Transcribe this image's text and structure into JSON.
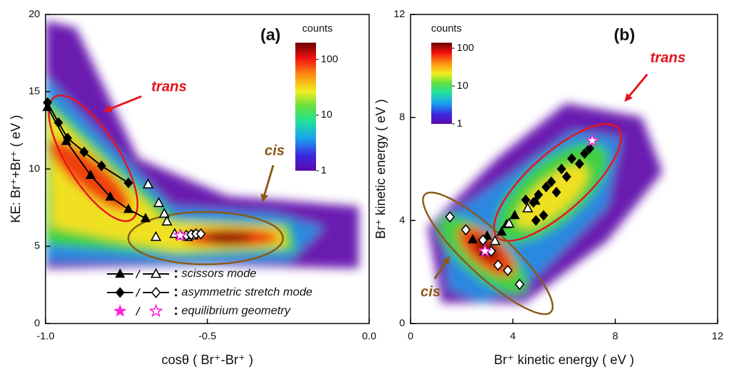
{
  "chart_data": [
    {
      "type": "scatter",
      "panel_label": "(a)",
      "xlabel": "cosθ ( Br⁺-Br⁺ )",
      "ylabel": "KE: Br⁺+Br⁺ ( eV )",
      "xlim": [
        -1,
        0
      ],
      "xticks": [
        {
          "value": -1,
          "label": "-1.0"
        },
        {
          "value": -0.5,
          "label": "-0.5"
        },
        {
          "value": 0,
          "label": "0.0"
        }
      ],
      "ylim": [
        0,
        20
      ],
      "yticks": [
        0,
        5,
        10,
        15,
        20
      ],
      "colorbar": {
        "title": "counts",
        "log": true,
        "lim": [
          1,
          200
        ],
        "ticks": [
          1,
          10,
          100
        ]
      },
      "annotations": [
        {
          "text": "trans",
          "color": "#e8141c"
        },
        {
          "text": "cis",
          "color": "#8a5a14"
        }
      ],
      "series": [
        {
          "name": "scissors mode",
          "marker": "triangle",
          "color": "#000000",
          "line": true,
          "x": [
            -0.994,
            -0.936,
            -0.861,
            -0.8,
            -0.744,
            -0.691
          ],
          "values": [
            14.0,
            11.8,
            9.6,
            8.2,
            7.4,
            6.8
          ]
        },
        {
          "name": "scissors mode",
          "marker": "triangle-open",
          "color": "#000000",
          "x": [
            -0.683,
            -0.65,
            -0.633,
            -0.625,
            -0.659,
            -0.601,
            -0.582,
            -0.561,
            -0.544
          ],
          "values": [
            9.0,
            7.8,
            7.1,
            6.6,
            5.6,
            5.8,
            5.7,
            5.6,
            5.7
          ]
        },
        {
          "name": "asymmetric stretch mode",
          "marker": "diamond",
          "color": "#000000",
          "line": true,
          "x": [
            -0.994,
            -0.96,
            -0.932,
            -0.881,
            -0.827,
            -0.744
          ],
          "values": [
            14.3,
            13.0,
            12.0,
            11.1,
            10.2,
            9.1
          ]
        },
        {
          "name": "asymmetric stretch mode",
          "marker": "diamond-open",
          "color": "#000000",
          "x": [
            -0.565,
            -0.55,
            -0.535,
            -0.52
          ],
          "values": [
            5.7,
            5.75,
            5.8,
            5.8
          ]
        },
        {
          "name": "equilibrium geometry",
          "marker": "star",
          "color": "#ff22dd",
          "x": [
            -0.584
          ],
          "values": [
            5.7
          ]
        },
        {
          "name": "equilibrium geometry",
          "marker": "star-open",
          "color": "#ff22dd",
          "x": [
            -0.584
          ],
          "values": [
            5.7
          ]
        }
      ]
    },
    {
      "type": "scatter",
      "panel_label": "(b)",
      "xlabel": "Br⁺ kinetic energy ( eV )",
      "ylabel": "Br⁺ kinetic energy ( eV )",
      "xlim": [
        0,
        12
      ],
      "xticks": [
        0,
        4,
        8,
        12
      ],
      "ylim": [
        0,
        12
      ],
      "yticks": [
        0,
        4,
        8,
        12
      ],
      "colorbar": {
        "title": "counts",
        "log": true,
        "lim": [
          1,
          140
        ],
        "ticks": [
          1,
          10,
          100
        ]
      },
      "annotations": [
        {
          "text": "trans",
          "color": "#e8141c"
        },
        {
          "text": "cis",
          "color": "#8a5a14"
        }
      ],
      "series": [
        {
          "marker": "triangle",
          "color": "#000000",
          "x": [
            2.43,
            2.99,
            3.56,
            3.75,
            4.07,
            4.88
          ],
          "values": [
            3.26,
            3.4,
            3.56,
            3.85,
            4.2,
            4.76
          ]
        },
        {
          "marker": "triangle-open",
          "color": "#000000",
          "x": [
            4.58,
            3.85,
            3.3,
            2.9
          ],
          "values": [
            4.47,
            3.88,
            3.2,
            2.8
          ]
        },
        {
          "marker": "diamond",
          "color": "#000000",
          "x": [
            4.5,
            4.8,
            5.0,
            5.2,
            5.5,
            5.9,
            6.3,
            6.8,
            7.0,
            6.1,
            6.6,
            5.7,
            5.3,
            4.9
          ],
          "values": [
            4.8,
            4.7,
            5.0,
            4.2,
            5.5,
            6.0,
            6.4,
            6.6,
            6.8,
            5.7,
            6.2,
            5.1,
            5.3,
            4.0
          ]
        },
        {
          "marker": "diamond-open",
          "color": "#000000",
          "x": [
            1.54,
            2.16,
            2.83,
            3.15,
            3.42,
            3.8,
            4.26
          ],
          "values": [
            4.14,
            3.64,
            3.24,
            2.81,
            2.27,
            2.06,
            1.52
          ]
        },
        {
          "marker": "star",
          "color": "#ff22dd",
          "x": [
            2.91,
            7.1
          ],
          "values": [
            2.81,
            7.1
          ]
        },
        {
          "marker": "star-open",
          "color": "#ff22dd",
          "x": [
            2.91,
            7.1
          ],
          "values": [
            2.81,
            7.1
          ]
        }
      ]
    }
  ]
}
